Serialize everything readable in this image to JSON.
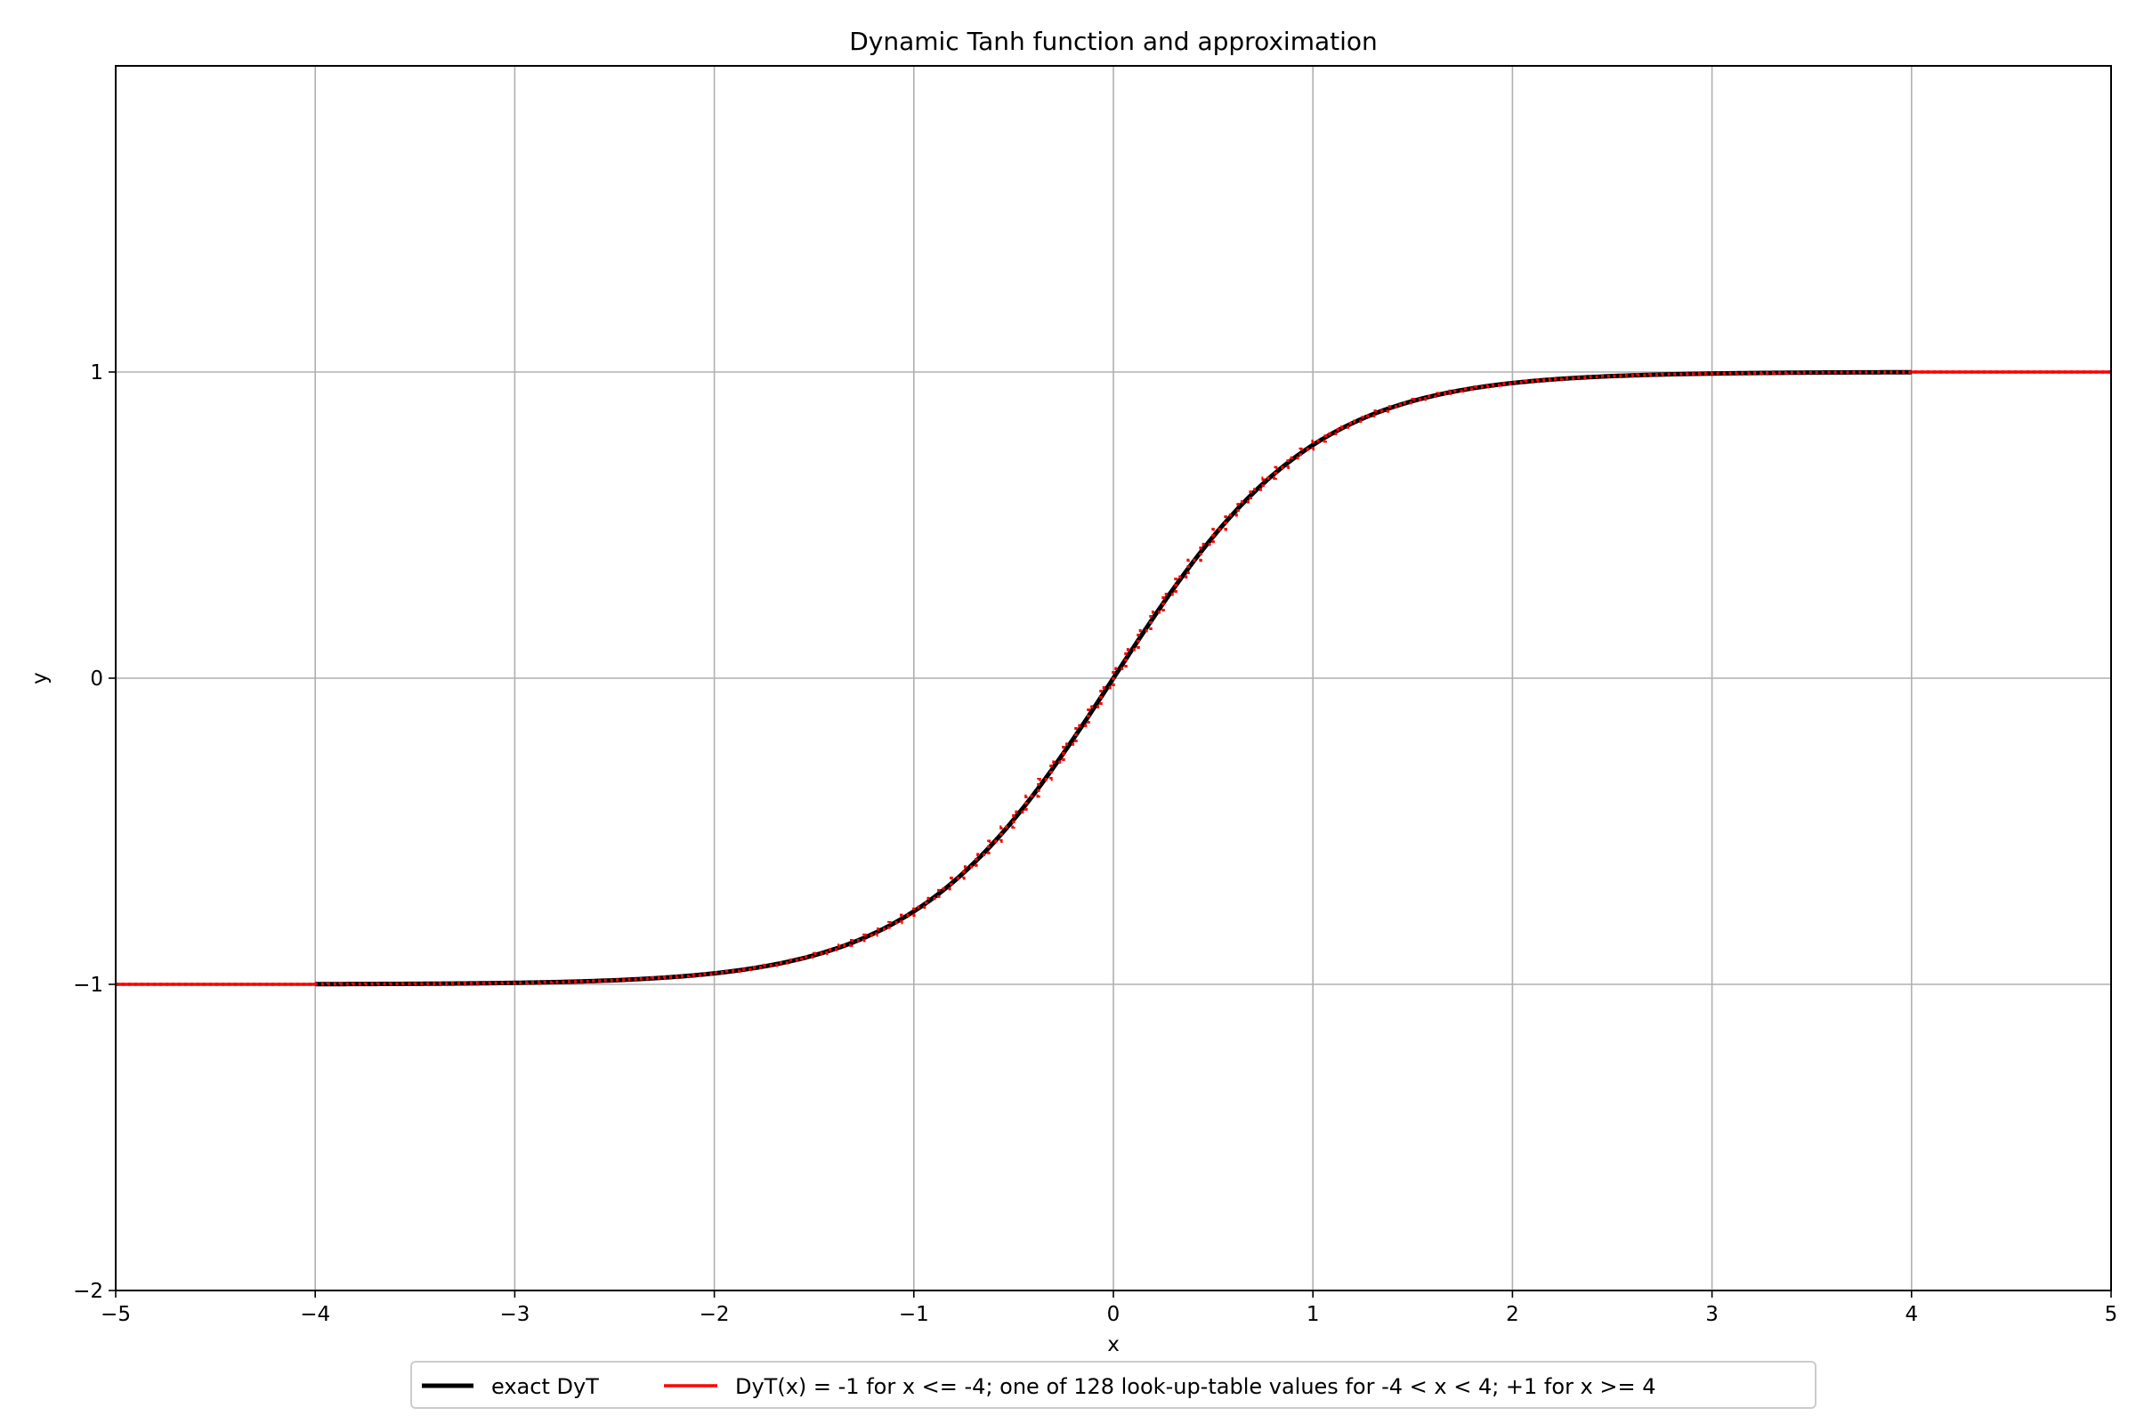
{
  "chart_data": {
    "type": "line",
    "title": "Dynamic Tanh function and approximation",
    "xlabel": "x",
    "ylabel": "y",
    "xlim": [
      -5,
      5
    ],
    "ylim": [
      -2,
      2
    ],
    "x_ticks": [
      -5,
      -4,
      -3,
      -2,
      -1,
      0,
      1,
      2,
      3,
      4,
      5
    ],
    "y_ticks": [
      -2,
      -1,
      0,
      1
    ],
    "x_tick_labels": [
      "−5",
      "−4",
      "−3",
      "−2",
      "−1",
      "0",
      "1",
      "2",
      "3",
      "4",
      "5"
    ],
    "y_tick_labels": [
      "−2",
      "−1",
      "0",
      "1"
    ],
    "grid": true,
    "legend_placement": "bottom-center, below axes",
    "series": [
      {
        "name": "exact DyT",
        "color": "#000000",
        "style": "solid",
        "function": "tanh(1.0 * x)",
        "x_range": [
          -4,
          4
        ]
      },
      {
        "name": "DyT(x) = -1 for x <= -4; one of 128 look-up-table values for -4 < x < 4; +1 for x >= 4",
        "color": "#ff0000",
        "style": "solid, step-wise (128 LUT steps)",
        "x_range": [
          -5,
          5
        ],
        "lut_size": 128
      }
    ]
  }
}
